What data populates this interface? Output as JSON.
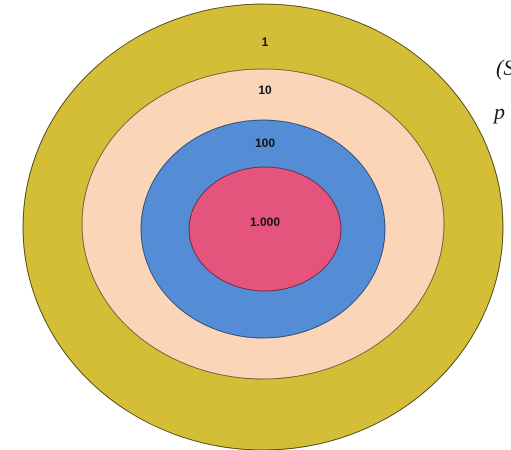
{
  "fragments": {
    "line1": "(Se",
    "line2": "p"
  },
  "rings": [
    {
      "label": "1",
      "color": "#D4BE37"
    },
    {
      "label": "10",
      "color": "#FBD5B8"
    },
    {
      "label": "100",
      "color": "#548CD6"
    },
    {
      "label": "1.000",
      "color": "#E4547C"
    }
  ]
}
